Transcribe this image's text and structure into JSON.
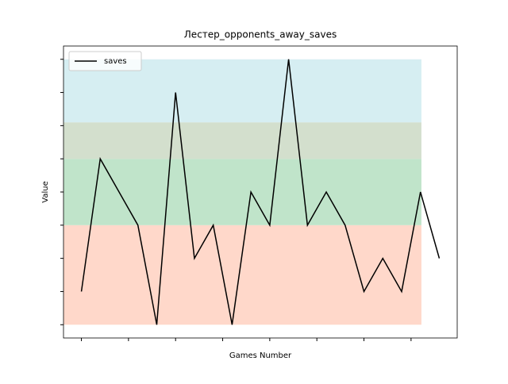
{
  "chart_data": {
    "type": "line",
    "title": "Лестер_opponents_away_saves",
    "xlabel": "Games Number",
    "ylabel": "Value",
    "x": [
      0,
      1,
      2,
      3,
      4,
      5,
      6,
      7,
      8,
      9,
      10,
      11,
      12,
      13,
      14,
      15,
      16,
      17,
      18,
      19
    ],
    "series": [
      {
        "name": "saves",
        "color": "#000000",
        "values": [
          1,
          5,
          4,
          3,
          0,
          7,
          2,
          3,
          0,
          4,
          3,
          8,
          3,
          4,
          3,
          1,
          2,
          1,
          4,
          2
        ]
      }
    ],
    "xlim": [
      -0.95,
      19.95
    ],
    "ylim": [
      -0.4,
      8.4
    ],
    "xticks": [
      0,
      2.5,
      5,
      7.5,
      10,
      12.5,
      15,
      17.5
    ],
    "yticks": [
      0,
      1,
      2,
      3,
      4,
      5,
      6,
      7,
      8
    ],
    "bands": [
      {
        "from": 0,
        "to": 3,
        "color": "#ffd8ca"
      },
      {
        "from": 3,
        "to": 5,
        "color": "#c0e4ca"
      },
      {
        "from": 5,
        "to": 6.1,
        "color": "#d3dfcd"
      },
      {
        "from": 6.1,
        "to": 8,
        "color": "#d6eef2"
      }
    ],
    "legend": "upper left"
  }
}
